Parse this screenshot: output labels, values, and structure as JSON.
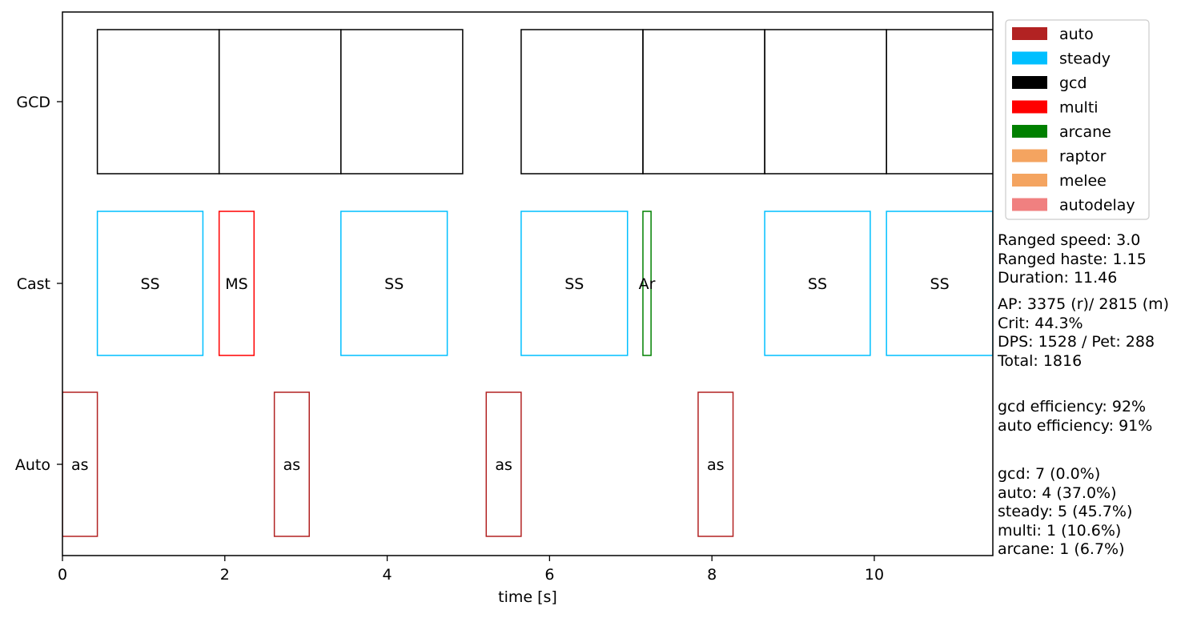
{
  "chart_data": {
    "type": "bar",
    "orientation": "horizontal-timeline",
    "xlabel": "time [s]",
    "xlim": [
      0,
      11.46
    ],
    "xticks": [
      0,
      2,
      4,
      6,
      8,
      10
    ],
    "rows": [
      "GCD",
      "Cast",
      "Auto"
    ],
    "legend_position": "top-right, outside plot",
    "colors": {
      "auto": "#b22222",
      "steady": "#00bfff",
      "gcd": "#000000",
      "multi": "#ff0000",
      "arcane": "#008000",
      "raptor": "#f4a460",
      "melee": "#f4a460",
      "autodelay": "#f08080"
    },
    "legend": [
      {
        "name": "auto",
        "color": "#b22222"
      },
      {
        "name": "steady",
        "color": "#00bfff"
      },
      {
        "name": "gcd",
        "color": "#000000"
      },
      {
        "name": "multi",
        "color": "#ff0000"
      },
      {
        "name": "arcane",
        "color": "#008000"
      },
      {
        "name": "raptor",
        "color": "#f4a460"
      },
      {
        "name": "melee",
        "color": "#f4a460"
      },
      {
        "name": "autodelay",
        "color": "#f08080"
      }
    ],
    "events": [
      {
        "row": "GCD",
        "start": 0.43,
        "end": 1.93,
        "kind": "gcd",
        "label": ""
      },
      {
        "row": "GCD",
        "start": 1.93,
        "end": 3.43,
        "kind": "gcd",
        "label": ""
      },
      {
        "row": "GCD",
        "start": 3.43,
        "end": 4.93,
        "kind": "gcd",
        "label": ""
      },
      {
        "row": "GCD",
        "start": 5.65,
        "end": 7.15,
        "kind": "gcd",
        "label": ""
      },
      {
        "row": "GCD",
        "start": 7.15,
        "end": 8.65,
        "kind": "gcd",
        "label": ""
      },
      {
        "row": "GCD",
        "start": 8.65,
        "end": 10.15,
        "kind": "gcd",
        "label": ""
      },
      {
        "row": "GCD",
        "start": 10.15,
        "end": 11.65,
        "kind": "gcd",
        "label": ""
      },
      {
        "row": "Cast",
        "start": 0.43,
        "end": 1.73,
        "kind": "steady",
        "label": "SS"
      },
      {
        "row": "Cast",
        "start": 1.93,
        "end": 2.36,
        "kind": "multi",
        "label": "MS"
      },
      {
        "row": "Cast",
        "start": 3.43,
        "end": 4.74,
        "kind": "steady",
        "label": "SS"
      },
      {
        "row": "Cast",
        "start": 5.65,
        "end": 6.96,
        "kind": "steady",
        "label": "SS"
      },
      {
        "row": "Cast",
        "start": 7.15,
        "end": 7.25,
        "kind": "arcane",
        "label": "Ar"
      },
      {
        "row": "Cast",
        "start": 8.65,
        "end": 9.95,
        "kind": "steady",
        "label": "SS"
      },
      {
        "row": "Cast",
        "start": 10.15,
        "end": 11.46,
        "kind": "steady",
        "label": "SS"
      },
      {
        "row": "Auto",
        "start": 0.0,
        "end": 0.43,
        "kind": "auto",
        "label": "as"
      },
      {
        "row": "Auto",
        "start": 2.61,
        "end": 3.04,
        "kind": "auto",
        "label": "as"
      },
      {
        "row": "Auto",
        "start": 5.22,
        "end": 5.65,
        "kind": "auto",
        "label": "as"
      },
      {
        "row": "Auto",
        "start": 7.83,
        "end": 8.26,
        "kind": "auto",
        "label": "as"
      }
    ]
  },
  "info": {
    "block1": "Ranged speed: 3.0\nRanged haste: 1.15\nDuration: 11.46",
    "block2": "AP: 3375 (r)/ 2815 (m)\nCrit: 44.3%\nDPS: 1528 / Pet: 288\nTotal: 1816",
    "block3": "gcd efficiency: 92%\nauto efficiency: 91%",
    "block4": "gcd: 7 (0.0%)\nauto: 4 (37.0%)\nsteady: 5 (45.7%)\nmulti: 1 (10.6%)\narcane: 1 (6.7%)"
  }
}
